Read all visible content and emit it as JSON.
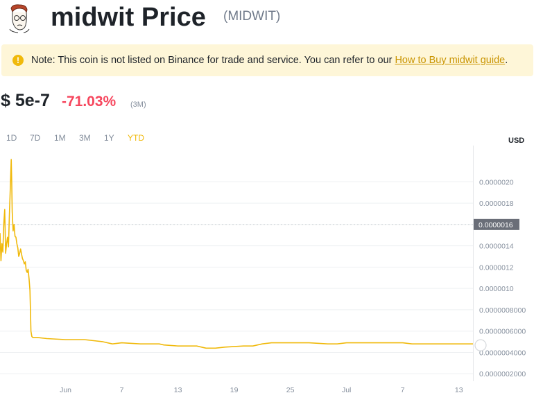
{
  "header": {
    "avatar_icon": "wojak-avatar-icon",
    "title": "midwit Price",
    "symbol": "(MIDWIT)"
  },
  "notice": {
    "icon": "exclamation-icon",
    "text": "Note: This coin is not listed on Binance for trade and service. You can refer to our ",
    "link_label": "How to Buy midwit guide",
    "suffix": "."
  },
  "price": {
    "value": "$ 5e-7",
    "change": "-71.03%",
    "period": "(3M)"
  },
  "ranges": [
    {
      "label": "1D",
      "active": false
    },
    {
      "label": "7D",
      "active": false
    },
    {
      "label": "1M",
      "active": false
    },
    {
      "label": "3M",
      "active": false
    },
    {
      "label": "1Y",
      "active": false
    },
    {
      "label": "YTD",
      "active": true
    }
  ],
  "colors": {
    "line": "#f0b90b",
    "negative": "#f6465d",
    "axis_text": "#848e9c",
    "crosshair_label_bg": "#6a6e78"
  },
  "chart_data": {
    "type": "line",
    "currency_label": "USD",
    "y_ticks": [
      "0.0000020",
      "0.0000018",
      "0.0000016",
      "0.0000014",
      "0.0000012",
      "0.0000010",
      "0.0000008000",
      "0.0000006000",
      "0.0000004000",
      "0.0000002000"
    ],
    "y_tick_values": [
      2e-06,
      1.8e-06,
      1.6e-06,
      1.4e-06,
      1.2e-06,
      1e-06,
      8e-07,
      6e-07,
      4e-07,
      2e-07
    ],
    "ylim": [
      1.3e-07,
      2.34e-06
    ],
    "crosshair_label": "0.0000016",
    "crosshair_value": 1.6e-06,
    "x_ticks": [
      {
        "label": "Jun",
        "day": 0
      },
      {
        "label": "7",
        "day": 6
      },
      {
        "label": "13",
        "day": 12
      },
      {
        "label": "19",
        "day": 18
      },
      {
        "label": "25",
        "day": 24
      },
      {
        "label": "Jul",
        "day": 30
      },
      {
        "label": "7",
        "day": 36
      },
      {
        "label": "13",
        "day": 42
      }
    ],
    "xlim": [
      -7,
      43.5
    ],
    "points": [
      [
        -7.0,
        1.52e-06
      ],
      [
        -6.9,
        1.26e-06
      ],
      [
        -6.8,
        1.42e-06
      ],
      [
        -6.7,
        1.34e-06
      ],
      [
        -6.6,
        1.6e-06
      ],
      [
        -6.5,
        1.74e-06
      ],
      [
        -6.4,
        1.33e-06
      ],
      [
        -6.3,
        1.42e-06
      ],
      [
        -6.2,
        1.48e-06
      ],
      [
        -6.1,
        1.39e-06
      ],
      [
        -6.0,
        1.68e-06
      ],
      [
        -5.9,
        1.95e-06
      ],
      [
        -5.8,
        2.21e-06
      ],
      [
        -5.75,
        2e-06
      ],
      [
        -5.7,
        1.72e-06
      ],
      [
        -5.6,
        1.54e-06
      ],
      [
        -5.5,
        1.6e-06
      ],
      [
        -5.4,
        1.49e-06
      ],
      [
        -5.3,
        1.48e-06
      ],
      [
        -5.2,
        1.42e-06
      ],
      [
        -5.1,
        1.38e-06
      ],
      [
        -5.0,
        1.3e-06
      ],
      [
        -4.9,
        1.33e-06
      ],
      [
        -4.8,
        1.37e-06
      ],
      [
        -4.7,
        1.32e-06
      ],
      [
        -4.6,
        1.28e-06
      ],
      [
        -4.5,
        1.26e-06
      ],
      [
        -4.4,
        1.23e-06
      ],
      [
        -4.3,
        1.25e-06
      ],
      [
        -4.2,
        1.17e-06
      ],
      [
        -4.1,
        1.15e-06
      ],
      [
        -4.0,
        1.18e-06
      ],
      [
        -3.9,
        1.09e-06
      ],
      [
        -3.8,
        9.8e-07
      ],
      [
        -3.75,
        8e-07
      ],
      [
        -3.7,
        6e-07
      ],
      [
        -3.6,
        5.5e-07
      ],
      [
        -3.5,
        5.4e-07
      ],
      [
        -3.0,
        5.4e-07
      ],
      [
        -2.0,
        5.3e-07
      ],
      [
        0.0,
        5.2e-07
      ],
      [
        2.0,
        5.2e-07
      ],
      [
        3.0,
        5.1e-07
      ],
      [
        4.0,
        5e-07
      ],
      [
        5.0,
        4.8e-07
      ],
      [
        6.0,
        4.9e-07
      ],
      [
        8.0,
        4.8e-07
      ],
      [
        10.0,
        4.8e-07
      ],
      [
        10.5,
        4.7e-07
      ],
      [
        12.0,
        4.6e-07
      ],
      [
        14.0,
        4.6e-07
      ],
      [
        15.0,
        4.4e-07
      ],
      [
        16.0,
        4.4e-07
      ],
      [
        17.0,
        4.5e-07
      ],
      [
        19.0,
        4.6e-07
      ],
      [
        20.0,
        4.6e-07
      ],
      [
        21.0,
        4.8e-07
      ],
      [
        22.0,
        4.9e-07
      ],
      [
        24.0,
        4.9e-07
      ],
      [
        26.0,
        4.9e-07
      ],
      [
        28.0,
        4.8e-07
      ],
      [
        29.0,
        4.8e-07
      ],
      [
        30.0,
        4.9e-07
      ],
      [
        32.0,
        4.9e-07
      ],
      [
        34.0,
        4.9e-07
      ],
      [
        36.0,
        4.9e-07
      ],
      [
        37.0,
        4.8e-07
      ],
      [
        38.0,
        4.8e-07
      ],
      [
        40.0,
        4.8e-07
      ],
      [
        42.0,
        4.8e-07
      ],
      [
        43.5,
        4.8e-07
      ]
    ],
    "grid": true,
    "watermark_icon": "binance-watermark-icon"
  }
}
